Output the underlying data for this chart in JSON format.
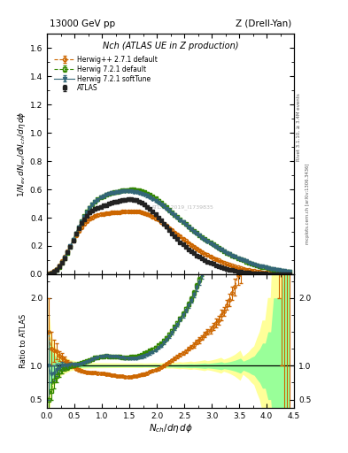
{
  "title_left": "13000 GeV pp",
  "title_right": "Z (Drell-Yan)",
  "plot_title": "Nch (ATLAS UE in Z production)",
  "xlabel": "$N_{ch}/d\\eta\\,d\\phi$",
  "ylabel_main": "$1/N_{ev}\\,dN_{ev}/dN_{ch}/d\\eta\\,d\\phi$",
  "ylabel_ratio": "Ratio to ATLAS",
  "right_label_top": "Rivet 3.1.10, ≥ 3.4M events",
  "right_label_bottom": "mcplots.cern.ch [arXiv:1306.3436]",
  "watermark": "ATLAS_2019_I1739835",
  "xlim": [
    0,
    4.5
  ],
  "ylim_main": [
    0,
    1.7
  ],
  "ylim_ratio": [
    0.38,
    2.35
  ],
  "atlas_x": [
    0.025,
    0.075,
    0.125,
    0.175,
    0.225,
    0.275,
    0.325,
    0.375,
    0.425,
    0.475,
    0.525,
    0.575,
    0.625,
    0.675,
    0.725,
    0.775,
    0.825,
    0.875,
    0.925,
    0.975,
    1.025,
    1.075,
    1.125,
    1.175,
    1.225,
    1.275,
    1.325,
    1.375,
    1.425,
    1.475,
    1.525,
    1.575,
    1.625,
    1.675,
    1.725,
    1.775,
    1.825,
    1.875,
    1.925,
    1.975,
    2.025,
    2.075,
    2.125,
    2.175,
    2.225,
    2.275,
    2.325,
    2.375,
    2.425,
    2.475,
    2.525,
    2.575,
    2.625,
    2.675,
    2.725,
    2.775,
    2.825,
    2.875,
    2.925,
    2.975,
    3.025,
    3.075,
    3.125,
    3.175,
    3.225,
    3.275,
    3.325,
    3.375,
    3.425,
    3.475,
    3.525,
    3.575,
    3.625,
    3.675,
    3.725,
    3.775,
    3.825,
    3.875,
    3.925,
    3.975,
    4.025,
    4.075,
    4.125,
    4.175,
    4.225,
    4.275,
    4.325,
    4.375,
    4.425
  ],
  "atlas_y": [
    0.002,
    0.008,
    0.018,
    0.033,
    0.055,
    0.082,
    0.115,
    0.155,
    0.195,
    0.24,
    0.285,
    0.325,
    0.36,
    0.39,
    0.415,
    0.435,
    0.45,
    0.46,
    0.47,
    0.478,
    0.485,
    0.49,
    0.498,
    0.505,
    0.51,
    0.515,
    0.52,
    0.525,
    0.528,
    0.53,
    0.53,
    0.528,
    0.523,
    0.515,
    0.505,
    0.492,
    0.477,
    0.46,
    0.442,
    0.423,
    0.402,
    0.381,
    0.358,
    0.335,
    0.312,
    0.29,
    0.268,
    0.248,
    0.228,
    0.21,
    0.193,
    0.177,
    0.162,
    0.148,
    0.134,
    0.122,
    0.111,
    0.1,
    0.09,
    0.082,
    0.073,
    0.065,
    0.058,
    0.051,
    0.045,
    0.039,
    0.034,
    0.029,
    0.025,
    0.021,
    0.018,
    0.015,
    0.012,
    0.01,
    0.008,
    0.007,
    0.005,
    0.004,
    0.003,
    0.003,
    0.002,
    0.002,
    0.001,
    0.001,
    0.001,
    0.001,
    0.0005,
    0.0003,
    0.0002
  ],
  "atlas_yerr": [
    0.001,
    0.002,
    0.003,
    0.004,
    0.005,
    0.006,
    0.007,
    0.008,
    0.008,
    0.009,
    0.009,
    0.009,
    0.009,
    0.009,
    0.009,
    0.009,
    0.009,
    0.009,
    0.009,
    0.009,
    0.009,
    0.009,
    0.009,
    0.009,
    0.009,
    0.009,
    0.009,
    0.009,
    0.009,
    0.009,
    0.009,
    0.009,
    0.009,
    0.009,
    0.009,
    0.008,
    0.008,
    0.008,
    0.008,
    0.008,
    0.007,
    0.007,
    0.007,
    0.007,
    0.007,
    0.006,
    0.006,
    0.006,
    0.006,
    0.005,
    0.005,
    0.005,
    0.005,
    0.004,
    0.004,
    0.004,
    0.004,
    0.004,
    0.003,
    0.003,
    0.003,
    0.003,
    0.003,
    0.003,
    0.002,
    0.002,
    0.002,
    0.002,
    0.002,
    0.002,
    0.002,
    0.001,
    0.001,
    0.001,
    0.001,
    0.001,
    0.001,
    0.001,
    0.001,
    0.001,
    0.001,
    0.001,
    0.001,
    0.001,
    0.001,
    0.001,
    0.001,
    0.001,
    0.001
  ],
  "herwig_pp_x": [
    0.025,
    0.075,
    0.125,
    0.175,
    0.225,
    0.275,
    0.325,
    0.375,
    0.425,
    0.475,
    0.525,
    0.575,
    0.625,
    0.675,
    0.725,
    0.775,
    0.825,
    0.875,
    0.925,
    0.975,
    1.025,
    1.075,
    1.125,
    1.175,
    1.225,
    1.275,
    1.325,
    1.375,
    1.425,
    1.475,
    1.525,
    1.575,
    1.625,
    1.675,
    1.725,
    1.775,
    1.825,
    1.875,
    1.925,
    1.975,
    2.025,
    2.075,
    2.125,
    2.175,
    2.225,
    2.275,
    2.325,
    2.375,
    2.425,
    2.475,
    2.525,
    2.575,
    2.625,
    2.675,
    2.725,
    2.775,
    2.825,
    2.875,
    2.925,
    2.975,
    3.025,
    3.075,
    3.125,
    3.175,
    3.225,
    3.275,
    3.325,
    3.375,
    3.425,
    3.475,
    3.525,
    3.575,
    3.625,
    3.675,
    3.725,
    3.775,
    3.825,
    3.875,
    3.925,
    3.975,
    4.025,
    4.075,
    4.125,
    4.175,
    4.225,
    4.275,
    4.325,
    4.375,
    4.425
  ],
  "herwig_pp_y": [
    0.003,
    0.01,
    0.022,
    0.04,
    0.063,
    0.092,
    0.125,
    0.162,
    0.2,
    0.238,
    0.273,
    0.305,
    0.333,
    0.356,
    0.376,
    0.391,
    0.403,
    0.412,
    0.419,
    0.424,
    0.428,
    0.431,
    0.433,
    0.435,
    0.437,
    0.439,
    0.44,
    0.442,
    0.443,
    0.444,
    0.445,
    0.445,
    0.444,
    0.442,
    0.438,
    0.433,
    0.426,
    0.418,
    0.408,
    0.397,
    0.385,
    0.372,
    0.358,
    0.343,
    0.328,
    0.313,
    0.297,
    0.281,
    0.266,
    0.25,
    0.235,
    0.221,
    0.207,
    0.193,
    0.181,
    0.168,
    0.157,
    0.146,
    0.135,
    0.125,
    0.115,
    0.106,
    0.097,
    0.089,
    0.081,
    0.074,
    0.067,
    0.06,
    0.054,
    0.049,
    0.043,
    0.039,
    0.034,
    0.03,
    0.026,
    0.023,
    0.019,
    0.017,
    0.014,
    0.012,
    0.01,
    0.008,
    0.007,
    0.005,
    0.004,
    0.003,
    0.002,
    0.002,
    0.001
  ],
  "herwig_pp_yerr": [
    0.001,
    0.002,
    0.003,
    0.004,
    0.004,
    0.005,
    0.006,
    0.006,
    0.007,
    0.007,
    0.007,
    0.007,
    0.007,
    0.007,
    0.007,
    0.007,
    0.007,
    0.007,
    0.007,
    0.007,
    0.007,
    0.007,
    0.007,
    0.007,
    0.007,
    0.007,
    0.007,
    0.007,
    0.007,
    0.007,
    0.007,
    0.007,
    0.007,
    0.007,
    0.007,
    0.007,
    0.007,
    0.007,
    0.007,
    0.007,
    0.006,
    0.006,
    0.006,
    0.006,
    0.006,
    0.006,
    0.006,
    0.006,
    0.006,
    0.005,
    0.005,
    0.005,
    0.005,
    0.005,
    0.005,
    0.005,
    0.004,
    0.004,
    0.004,
    0.004,
    0.004,
    0.004,
    0.004,
    0.004,
    0.003,
    0.003,
    0.003,
    0.003,
    0.003,
    0.003,
    0.003,
    0.003,
    0.003,
    0.003,
    0.003,
    0.002,
    0.002,
    0.002,
    0.002,
    0.002,
    0.002,
    0.002,
    0.002,
    0.002,
    0.002,
    0.002,
    0.002,
    0.002,
    0.002
  ],
  "herwig721_x": [
    0.025,
    0.075,
    0.125,
    0.175,
    0.225,
    0.275,
    0.325,
    0.375,
    0.425,
    0.475,
    0.525,
    0.575,
    0.625,
    0.675,
    0.725,
    0.775,
    0.825,
    0.875,
    0.925,
    0.975,
    1.025,
    1.075,
    1.125,
    1.175,
    1.225,
    1.275,
    1.325,
    1.375,
    1.425,
    1.475,
    1.525,
    1.575,
    1.625,
    1.675,
    1.725,
    1.775,
    1.825,
    1.875,
    1.925,
    1.975,
    2.025,
    2.075,
    2.125,
    2.175,
    2.225,
    2.275,
    2.325,
    2.375,
    2.425,
    2.475,
    2.525,
    2.575,
    2.625,
    2.675,
    2.725,
    2.775,
    2.825,
    2.875,
    2.925,
    2.975,
    3.025,
    3.075,
    3.125,
    3.175,
    3.225,
    3.275,
    3.325,
    3.375,
    3.425,
    3.475,
    3.525,
    3.575,
    3.625,
    3.675,
    3.725,
    3.775,
    3.825,
    3.875,
    3.925,
    3.975,
    4.025,
    4.075,
    4.125,
    4.175,
    4.225,
    4.275,
    4.325,
    4.375,
    4.425
  ],
  "herwig721_y": [
    0.001,
    0.005,
    0.014,
    0.028,
    0.05,
    0.078,
    0.112,
    0.152,
    0.196,
    0.242,
    0.289,
    0.333,
    0.374,
    0.411,
    0.444,
    0.472,
    0.495,
    0.514,
    0.53,
    0.543,
    0.553,
    0.561,
    0.568,
    0.574,
    0.579,
    0.584,
    0.588,
    0.592,
    0.595,
    0.597,
    0.598,
    0.598,
    0.596,
    0.593,
    0.588,
    0.581,
    0.572,
    0.562,
    0.55,
    0.537,
    0.522,
    0.507,
    0.491,
    0.474,
    0.457,
    0.44,
    0.422,
    0.405,
    0.388,
    0.371,
    0.354,
    0.338,
    0.322,
    0.307,
    0.292,
    0.277,
    0.263,
    0.249,
    0.236,
    0.223,
    0.21,
    0.198,
    0.186,
    0.175,
    0.164,
    0.153,
    0.143,
    0.133,
    0.124,
    0.115,
    0.106,
    0.098,
    0.09,
    0.083,
    0.076,
    0.069,
    0.063,
    0.057,
    0.052,
    0.047,
    0.042,
    0.038,
    0.034,
    0.03,
    0.027,
    0.024,
    0.021,
    0.018,
    0.016
  ],
  "herwig721_yerr": [
    0.001,
    0.001,
    0.002,
    0.003,
    0.004,
    0.005,
    0.006,
    0.006,
    0.007,
    0.007,
    0.007,
    0.007,
    0.007,
    0.007,
    0.007,
    0.007,
    0.007,
    0.007,
    0.007,
    0.007,
    0.007,
    0.007,
    0.007,
    0.007,
    0.007,
    0.007,
    0.007,
    0.007,
    0.007,
    0.007,
    0.007,
    0.007,
    0.007,
    0.007,
    0.007,
    0.007,
    0.007,
    0.007,
    0.007,
    0.007,
    0.007,
    0.007,
    0.007,
    0.007,
    0.007,
    0.006,
    0.006,
    0.006,
    0.006,
    0.006,
    0.006,
    0.006,
    0.006,
    0.006,
    0.006,
    0.005,
    0.005,
    0.005,
    0.005,
    0.005,
    0.005,
    0.005,
    0.005,
    0.005,
    0.005,
    0.004,
    0.004,
    0.004,
    0.004,
    0.004,
    0.004,
    0.004,
    0.004,
    0.004,
    0.004,
    0.004,
    0.003,
    0.003,
    0.003,
    0.003,
    0.003,
    0.003,
    0.003,
    0.003,
    0.003,
    0.003,
    0.003,
    0.003,
    0.003
  ],
  "herwig_soft_x": [
    0.025,
    0.075,
    0.125,
    0.175,
    0.225,
    0.275,
    0.325,
    0.375,
    0.425,
    0.475,
    0.525,
    0.575,
    0.625,
    0.675,
    0.725,
    0.775,
    0.825,
    0.875,
    0.925,
    0.975,
    1.025,
    1.075,
    1.125,
    1.175,
    1.225,
    1.275,
    1.325,
    1.375,
    1.425,
    1.475,
    1.525,
    1.575,
    1.625,
    1.675,
    1.725,
    1.775,
    1.825,
    1.875,
    1.925,
    1.975,
    2.025,
    2.075,
    2.125,
    2.175,
    2.225,
    2.275,
    2.325,
    2.375,
    2.425,
    2.475,
    2.525,
    2.575,
    2.625,
    2.675,
    2.725,
    2.775,
    2.825,
    2.875,
    2.925,
    2.975,
    3.025,
    3.075,
    3.125,
    3.175,
    3.225,
    3.275,
    3.325,
    3.375,
    3.425,
    3.475,
    3.525,
    3.575,
    3.625,
    3.675,
    3.725,
    3.775,
    3.825,
    3.875,
    3.925,
    3.975,
    4.025,
    4.075,
    4.125,
    4.175,
    4.225,
    4.275,
    4.325,
    4.375,
    4.425
  ],
  "herwig_soft_y": [
    0.002,
    0.007,
    0.016,
    0.031,
    0.053,
    0.082,
    0.116,
    0.156,
    0.199,
    0.244,
    0.289,
    0.332,
    0.372,
    0.408,
    0.44,
    0.468,
    0.492,
    0.512,
    0.528,
    0.542,
    0.553,
    0.561,
    0.568,
    0.574,
    0.578,
    0.582,
    0.584,
    0.586,
    0.587,
    0.587,
    0.586,
    0.584,
    0.58,
    0.576,
    0.57,
    0.562,
    0.554,
    0.544,
    0.533,
    0.521,
    0.508,
    0.494,
    0.479,
    0.464,
    0.448,
    0.432,
    0.416,
    0.399,
    0.383,
    0.366,
    0.35,
    0.334,
    0.318,
    0.303,
    0.288,
    0.273,
    0.259,
    0.245,
    0.232,
    0.219,
    0.206,
    0.194,
    0.183,
    0.172,
    0.161,
    0.151,
    0.141,
    0.132,
    0.123,
    0.114,
    0.106,
    0.098,
    0.091,
    0.084,
    0.077,
    0.071,
    0.065,
    0.059,
    0.054,
    0.049,
    0.044,
    0.04,
    0.036,
    0.032,
    0.029,
    0.025,
    0.023,
    0.02,
    0.018
  ],
  "herwig_soft_yerr": [
    0.001,
    0.001,
    0.002,
    0.003,
    0.004,
    0.005,
    0.006,
    0.006,
    0.007,
    0.007,
    0.007,
    0.007,
    0.007,
    0.007,
    0.007,
    0.007,
    0.007,
    0.007,
    0.007,
    0.007,
    0.007,
    0.007,
    0.007,
    0.007,
    0.007,
    0.007,
    0.007,
    0.007,
    0.007,
    0.007,
    0.007,
    0.007,
    0.007,
    0.007,
    0.007,
    0.007,
    0.007,
    0.007,
    0.007,
    0.007,
    0.007,
    0.007,
    0.007,
    0.007,
    0.007,
    0.007,
    0.007,
    0.006,
    0.006,
    0.006,
    0.006,
    0.006,
    0.006,
    0.006,
    0.006,
    0.006,
    0.006,
    0.005,
    0.005,
    0.005,
    0.005,
    0.005,
    0.005,
    0.005,
    0.005,
    0.005,
    0.005,
    0.005,
    0.004,
    0.004,
    0.004,
    0.004,
    0.004,
    0.004,
    0.004,
    0.004,
    0.004,
    0.004,
    0.004,
    0.004,
    0.004,
    0.003,
    0.003,
    0.003,
    0.003,
    0.003,
    0.003,
    0.003,
    0.003
  ],
  "color_atlas": "#222222",
  "color_herwig_pp": "#cc6600",
  "color_herwig721": "#338800",
  "color_herwig_soft": "#336677",
  "color_band_yellow": "#ffff99",
  "color_band_green": "#99ff99",
  "legend_labels": [
    "ATLAS",
    "Herwig++ 2.7.1 default",
    "Herwig 7.2.1 default",
    "Herwig 7.2.1 softTune"
  ],
  "yticks_main": [
    0,
    0.2,
    0.4,
    0.6,
    0.8,
    1.0,
    1.2,
    1.4,
    1.6
  ],
  "yticks_ratio": [
    0.5,
    1.0,
    2.0
  ]
}
